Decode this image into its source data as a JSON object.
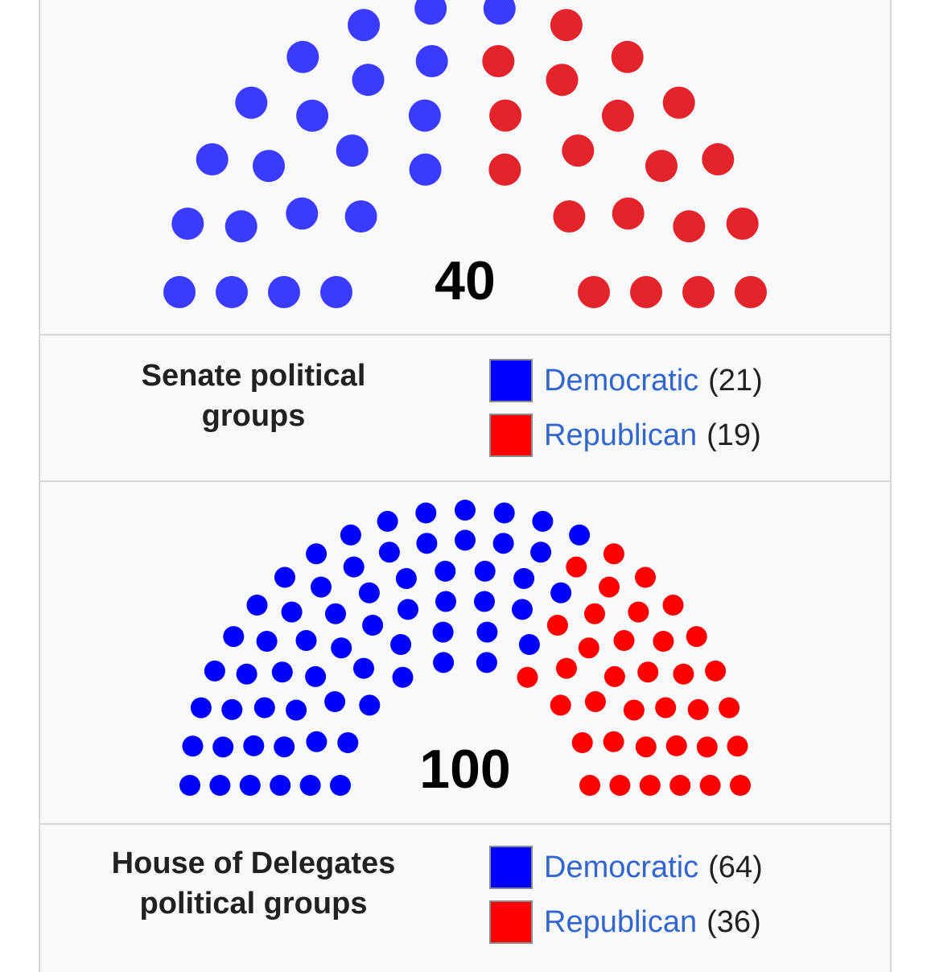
{
  "colors": {
    "senate_democratic_dot": "#3b3bff",
    "senate_republican_dot": "#e3242b",
    "house_democratic_dot": "#0000ff",
    "house_republican_dot": "#ff0000",
    "democratic_swatch": "#0000ff",
    "republican_swatch": "#ff0000",
    "link": "#3366cc"
  },
  "senate": {
    "total": "40",
    "label": "Senate political groups",
    "legend": [
      {
        "party": "Democratic",
        "count": "(21)"
      },
      {
        "party": "Republican",
        "count": "(19)"
      }
    ],
    "seats": {
      "democratic": 21,
      "republican": 19
    }
  },
  "house": {
    "total": "100",
    "label_line1": "House of Delegates",
    "label_line2": "political groups",
    "legend": [
      {
        "party": "Democratic",
        "count": "(64)"
      },
      {
        "party": "Republican",
        "count": "(36)"
      }
    ],
    "seats": {
      "democratic": 64,
      "republican": 36
    }
  }
}
